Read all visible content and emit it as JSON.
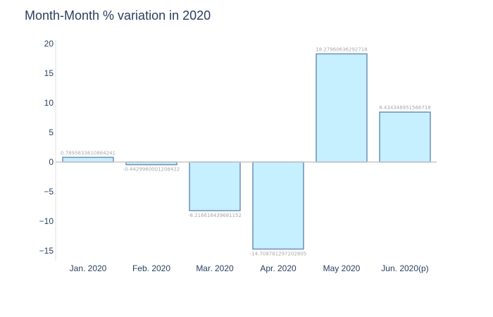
{
  "title": "Month-Month % variation in 2020",
  "colors": {
    "bar_fill": "#c6efff",
    "bar_stroke": "#6f8fb8",
    "axis_text": "#2a3f5f",
    "label_text": "#a9a9a9",
    "zero_line": "#c8c8c8"
  },
  "chart_data": {
    "type": "bar",
    "title": "Month-Month % variation in 2020",
    "xlabel": "",
    "ylabel": "",
    "categories": [
      "Jan. 2020",
      "Feb. 2020",
      "Mar. 2020",
      "Apr. 2020",
      "May 2020",
      "Jun. 2020(p)"
    ],
    "values": [
      0.7895833610864241,
      -0.4429960001208422,
      -8.216616439681152,
      -14.708781297202805,
      18.27960636292718,
      8.434346951566718
    ],
    "value_labels": [
      "0.7895833610864241",
      "-0.4429960001208422",
      "-8.216616439681152",
      "-14.708781297202805",
      "18.27960636292718",
      "8.434346951566718"
    ],
    "y_ticks": [
      20,
      15,
      10,
      5,
      0,
      -5,
      -10,
      -15
    ],
    "y_tick_labels": [
      "20",
      "15",
      "10",
      "5",
      "0",
      "−5",
      "−10",
      "−15"
    ],
    "ylim": [
      -16.5,
      20.5
    ],
    "grid": false,
    "legend": "none"
  }
}
